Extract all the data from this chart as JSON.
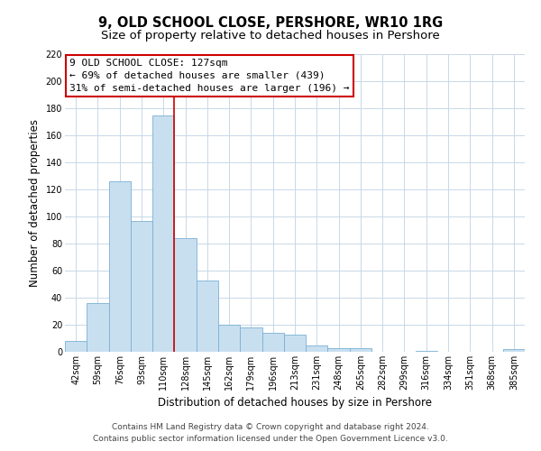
{
  "title": "9, OLD SCHOOL CLOSE, PERSHORE, WR10 1RG",
  "subtitle": "Size of property relative to detached houses in Pershore",
  "xlabel": "Distribution of detached houses by size in Pershore",
  "ylabel": "Number of detached properties",
  "bar_labels": [
    "42sqm",
    "59sqm",
    "76sqm",
    "93sqm",
    "110sqm",
    "128sqm",
    "145sqm",
    "162sqm",
    "179sqm",
    "196sqm",
    "213sqm",
    "231sqm",
    "248sqm",
    "265sqm",
    "282sqm",
    "299sqm",
    "316sqm",
    "334sqm",
    "351sqm",
    "368sqm",
    "385sqm"
  ],
  "bar_values": [
    8,
    36,
    126,
    97,
    175,
    84,
    53,
    20,
    18,
    14,
    13,
    5,
    3,
    3,
    0,
    0,
    1,
    0,
    0,
    0,
    2
  ],
  "bar_color": "#c8dff0",
  "bar_edge_color": "#7ab0d4",
  "vline_color": "#cc0000",
  "vline_x": 4.5,
  "ylim": [
    0,
    220
  ],
  "yticks": [
    0,
    20,
    40,
    60,
    80,
    100,
    120,
    140,
    160,
    180,
    200,
    220
  ],
  "annotation_line1": "9 OLD SCHOOL CLOSE: 127sqm",
  "annotation_line2": "← 69% of detached houses are smaller (439)",
  "annotation_line3": "31% of semi-detached houses are larger (196) →",
  "footnote1": "Contains HM Land Registry data © Crown copyright and database right 2024.",
  "footnote2": "Contains public sector information licensed under the Open Government Licence v3.0.",
  "bg_color": "#ffffff",
  "grid_color": "#c8d8e8",
  "title_fontsize": 10.5,
  "subtitle_fontsize": 9.5,
  "xlabel_fontsize": 8.5,
  "ylabel_fontsize": 8.5,
  "tick_fontsize": 7,
  "annotation_fontsize": 8,
  "footnote_fontsize": 6.5
}
